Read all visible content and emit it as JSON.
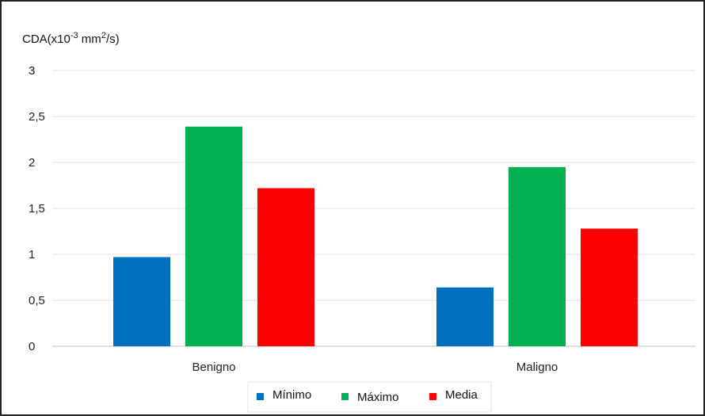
{
  "chart_data": {
    "type": "bar",
    "ylabel": "CDA(x10",
    "ylabel_exp1": "-3",
    "ylabel_mid": " mm",
    "ylabel_exp2": "2",
    "ylabel_end": "/s)",
    "categories": [
      "Benigno",
      "Maligno"
    ],
    "series": [
      {
        "name": "Mínimo",
        "color": "#0070c0",
        "values": [
          0.97,
          0.64
        ]
      },
      {
        "name": "Máximo",
        "color": "#00b050",
        "values": [
          2.39,
          1.95
        ]
      },
      {
        "name": "Media",
        "color": "#ff0000",
        "values": [
          1.72,
          1.28
        ]
      }
    ],
    "yticks": [
      "0",
      "0,5",
      "1",
      "1,5",
      "2",
      "2,5",
      "3"
    ],
    "ylim": [
      0,
      3
    ],
    "grid": true,
    "legend": "bottom"
  }
}
